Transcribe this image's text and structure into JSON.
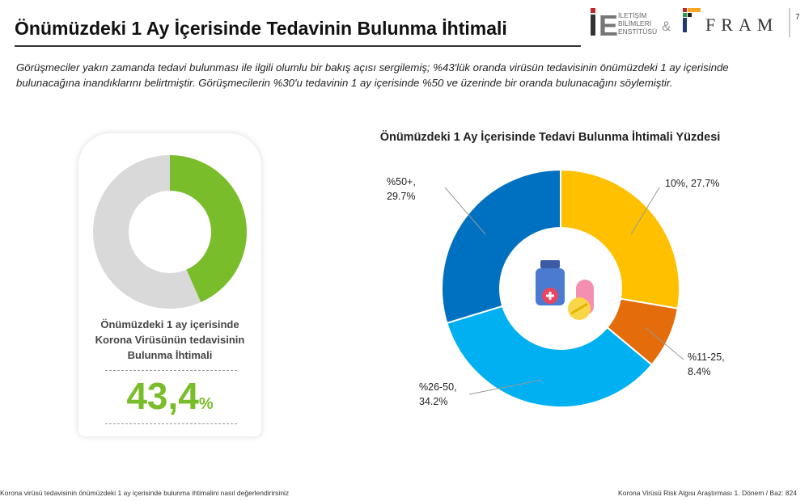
{
  "header": {
    "title": "Önümüzdeki 1 Ay İçerisinde Tedavinin Bulunma İhtimali",
    "page_number": "7",
    "logo_text": "İLETİŞİM BİLİMLERİ ENSTİTÜSÜ & FRAM"
  },
  "description": "Görüşmeciler yakın zamanda tedavi bulunması ile ilgili olumlu bir bakış açısı sergilemiş; %43'lük oranda virüsün tedavisinin önümüzdeki 1 ay içerisinde bulunacağına inandıklarını belirtmiştir. Görüşmecilerin %30'u tedavinin 1 ay içerisinde %50 ve üzerinde bir oranda bulunacağını söylemiştir.",
  "kpi": {
    "label": "Önümüzdeki 1 ay içerisinde Korona Virüsünün tedavisinin Bulunma İhtimali",
    "value": "43,4",
    "unit": "%",
    "fraction": 0.434,
    "color": "#7ABD2A",
    "rest_color": "#D9D9D9"
  },
  "chart_data": {
    "type": "pie",
    "donut": true,
    "title": "Önümüzdeki 1 Ay İçerisinde Tedavi Bulunma İhtimali Yüzdesi",
    "categories": [
      "10%",
      "%11-25",
      "%26-50",
      "%50+"
    ],
    "values": [
      27.7,
      8.4,
      34.2,
      29.7
    ],
    "labels": [
      "10%, 27.7%",
      "%11-25, 8.4%",
      "%26-50, 34.2%",
      "%50+, 29.7%"
    ],
    "colors": [
      "#FFC000",
      "#E46C0A",
      "#00B0F0",
      "#0070C0"
    ],
    "center_icon": "medicine-icon"
  },
  "footer": {
    "left": "Korona virüsü tedavisinin önümüzdeki 1 ay içerisinde bulunma ihtimalini nasıl değerlendirirsiniz",
    "right": "Korona Virüsü Risk Algısı Araştırması 1. Dönem / Baz: 824"
  }
}
